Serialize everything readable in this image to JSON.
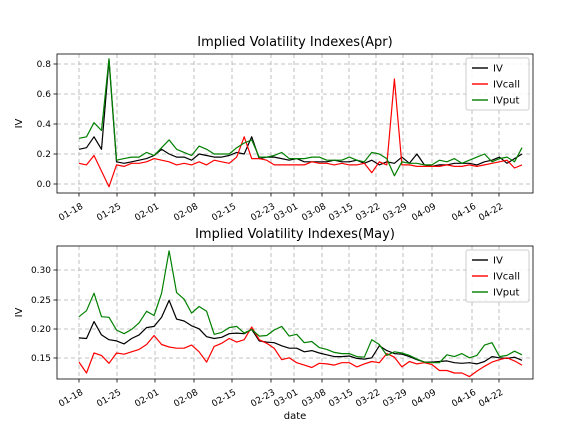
{
  "chart_data": [
    {
      "type": "line",
      "title": "Implied Volatility Indexes(Apr)",
      "xlabel": "",
      "ylabel": "IV",
      "x_ticks": [
        "01-18",
        "01-25",
        "02-01",
        "02-08",
        "02-15",
        "02-23",
        "03-01",
        "03-08",
        "03-15",
        "03-22",
        "03-29",
        "04-09",
        "04-16",
        "04-22"
      ],
      "y_ticks": [
        "0.0",
        "0.2",
        "0.4",
        "0.6",
        "0.8"
      ],
      "ylim": [
        -0.03,
        0.86
      ],
      "grid": true,
      "legend_position": "top-right",
      "series": [
        {
          "name": "IV",
          "color": "#000000",
          "values": [
            0.25,
            0.26,
            0.33,
            0.25,
            0.82,
            0.17,
            0.16,
            0.17,
            0.18,
            0.19,
            0.21,
            0.25,
            0.22,
            0.2,
            0.2,
            0.18,
            0.22,
            0.21,
            0.2,
            0.2,
            0.21,
            0.23,
            0.22,
            0.33,
            0.19,
            0.2,
            0.2,
            0.19,
            0.18,
            0.19,
            0.17,
            0.17,
            0.17,
            0.17,
            0.18,
            0.17,
            0.17,
            0.18,
            0.16,
            0.18,
            0.15,
            0.17,
            0.16,
            0.2,
            0.16,
            0.22,
            0.15,
            0.14,
            0.15,
            0.15,
            0.16,
            0.16,
            0.16,
            0.15,
            0.17,
            0.18,
            0.2,
            0.16,
            0.19,
            0.22
          ]
        },
        {
          "name": "IVcall",
          "color": "#ff0000",
          "values": [
            0.16,
            0.15,
            0.21,
            0.11,
            0.01,
            0.15,
            0.14,
            0.16,
            0.16,
            0.17,
            0.19,
            0.18,
            0.17,
            0.15,
            0.16,
            0.15,
            0.17,
            0.15,
            0.18,
            0.17,
            0.16,
            0.2,
            0.33,
            0.19,
            0.19,
            0.18,
            0.15,
            0.15,
            0.15,
            0.15,
            0.15,
            0.17,
            0.16,
            0.16,
            0.15,
            0.16,
            0.15,
            0.15,
            0.16,
            0.1,
            0.17,
            0.15,
            0.7,
            0.15,
            0.15,
            0.14,
            0.14,
            0.14,
            0.14,
            0.15,
            0.14,
            0.14,
            0.15,
            0.14,
            0.15,
            0.16,
            0.17,
            0.18,
            0.13,
            0.15
          ]
        },
        {
          "name": "IVput",
          "color": "#008000",
          "values": [
            0.32,
            0.33,
            0.42,
            0.37,
            0.83,
            0.18,
            0.19,
            0.2,
            0.2,
            0.23,
            0.21,
            0.26,
            0.31,
            0.25,
            0.23,
            0.21,
            0.27,
            0.25,
            0.22,
            0.22,
            0.22,
            0.26,
            0.29,
            0.31,
            0.2,
            0.2,
            0.21,
            0.23,
            0.19,
            0.19,
            0.19,
            0.2,
            0.2,
            0.18,
            0.18,
            0.18,
            0.2,
            0.18,
            0.17,
            0.23,
            0.22,
            0.19,
            0.08,
            0.17,
            0.16,
            0.16,
            0.15,
            0.15,
            0.18,
            0.17,
            0.19,
            0.16,
            0.18,
            0.2,
            0.22,
            0.17,
            0.19,
            0.2,
            0.17,
            0.26
          ]
        }
      ]
    },
    {
      "type": "line",
      "title": "Implied Volatility Indexes(May)",
      "xlabel": "date",
      "ylabel": "IV",
      "x_ticks": [
        "01-18",
        "01-25",
        "02-01",
        "02-08",
        "02-15",
        "02-23",
        "03-01",
        "03-08",
        "03-15",
        "03-22",
        "03-29",
        "04-09",
        "04-16",
        "04-22"
      ],
      "y_ticks": [
        "0.15",
        "0.20",
        "0.25",
        "0.30"
      ],
      "ylim": [
        0.123,
        0.343
      ],
      "grid": true,
      "legend_position": "top-right",
      "series": [
        {
          "name": "IV",
          "color": "#000000",
          "values": [
            0.191,
            0.19,
            0.218,
            0.196,
            0.188,
            0.186,
            0.181,
            0.19,
            0.196,
            0.208,
            0.21,
            0.225,
            0.253,
            0.222,
            0.219,
            0.211,
            0.206,
            0.193,
            0.19,
            0.192,
            0.198,
            0.199,
            0.198,
            0.205,
            0.186,
            0.184,
            0.183,
            0.178,
            0.174,
            0.174,
            0.168,
            0.17,
            0.166,
            0.163,
            0.16,
            0.16,
            0.161,
            0.157,
            0.156,
            0.158,
            0.178,
            0.17,
            0.165,
            0.164,
            0.16,
            0.155,
            0.151,
            0.151,
            0.152,
            0.153,
            0.15,
            0.149,
            0.15,
            0.148,
            0.152,
            0.16,
            0.158,
            0.157,
            0.159,
            0.154
          ]
        },
        {
          "name": "IVcall",
          "color": "#ff0000",
          "values": [
            0.151,
            0.133,
            0.166,
            0.162,
            0.149,
            0.166,
            0.164,
            0.168,
            0.172,
            0.18,
            0.195,
            0.18,
            0.176,
            0.174,
            0.174,
            0.179,
            0.168,
            0.151,
            0.177,
            0.182,
            0.19,
            0.184,
            0.188,
            0.209,
            0.188,
            0.182,
            0.174,
            0.155,
            0.158,
            0.15,
            0.146,
            0.142,
            0.149,
            0.148,
            0.146,
            0.15,
            0.15,
            0.143,
            0.148,
            0.152,
            0.15,
            0.165,
            0.159,
            0.143,
            0.152,
            0.148,
            0.15,
            0.147,
            0.137,
            0.137,
            0.133,
            0.133,
            0.127,
            0.136,
            0.144,
            0.151,
            0.155,
            0.158,
            0.153,
            0.146
          ]
        },
        {
          "name": "IVput",
          "color": "#008000",
          "values": [
            0.226,
            0.236,
            0.265,
            0.226,
            0.225,
            0.204,
            0.198,
            0.205,
            0.216,
            0.235,
            0.228,
            0.265,
            0.335,
            0.266,
            0.255,
            0.232,
            0.243,
            0.235,
            0.197,
            0.2,
            0.208,
            0.21,
            0.199,
            0.205,
            0.194,
            0.195,
            0.204,
            0.21,
            0.194,
            0.197,
            0.183,
            0.185,
            0.175,
            0.172,
            0.167,
            0.165,
            0.165,
            0.16,
            0.159,
            0.188,
            0.18,
            0.162,
            0.168,
            0.166,
            0.162,
            0.156,
            0.151,
            0.15,
            0.15,
            0.163,
            0.16,
            0.165,
            0.158,
            0.162,
            0.179,
            0.183,
            0.16,
            0.162,
            0.169,
            0.163
          ]
        }
      ]
    }
  ]
}
